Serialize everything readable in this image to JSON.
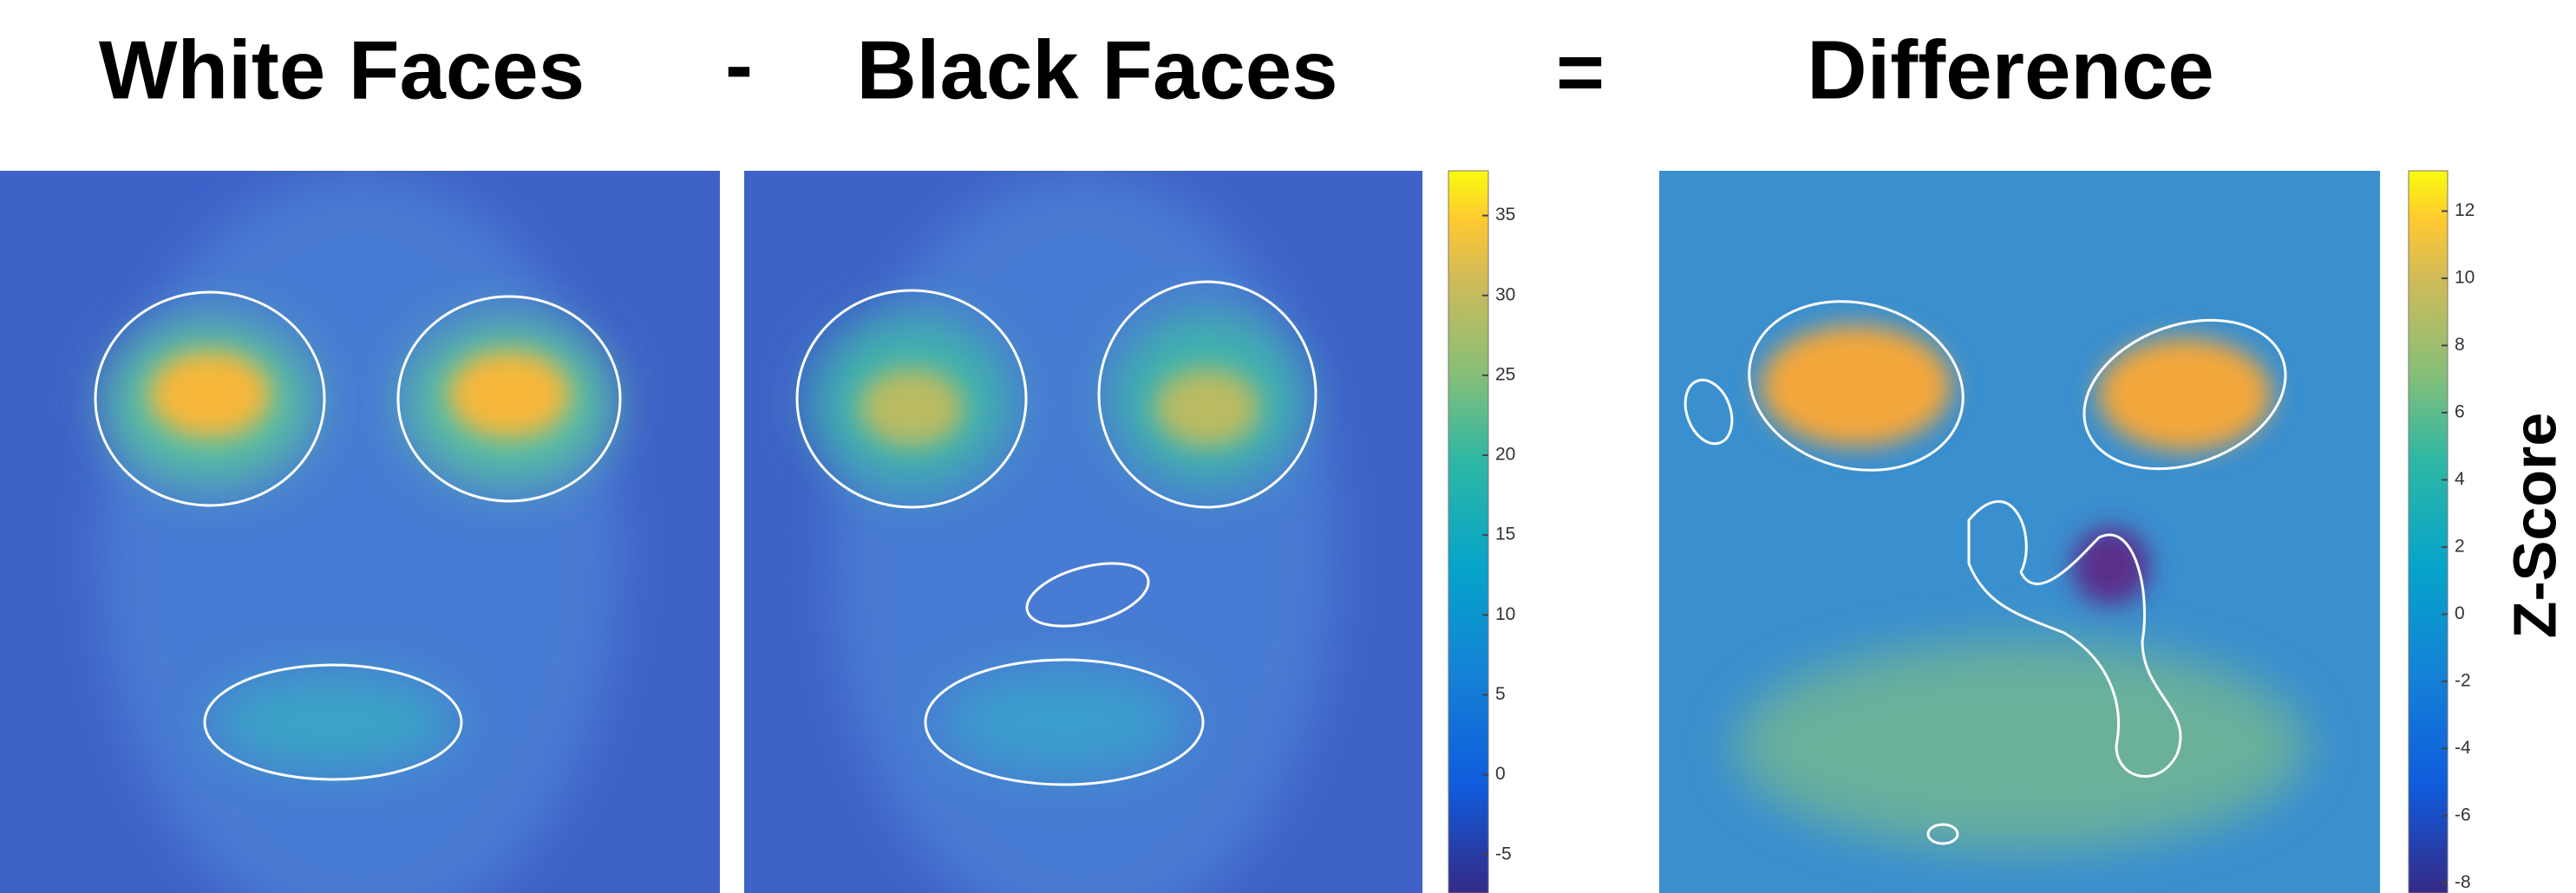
{
  "header": {
    "left": "White Faces",
    "minus": "-",
    "middle": "Black Faces",
    "equals": "=",
    "right": "Difference"
  },
  "colorbars": [
    {
      "lim": [
        -7.4,
        37.8
      ],
      "ticks": [
        35,
        30,
        25,
        20,
        15,
        10,
        5,
        0,
        -5
      ]
    },
    {
      "lim": [
        -8.3,
        13.2
      ],
      "ticks": [
        12,
        10,
        8,
        6,
        4,
        2,
        0,
        -2,
        -4,
        -6,
        -8
      ]
    }
  ],
  "colorbar_label": "Z-Score"
}
